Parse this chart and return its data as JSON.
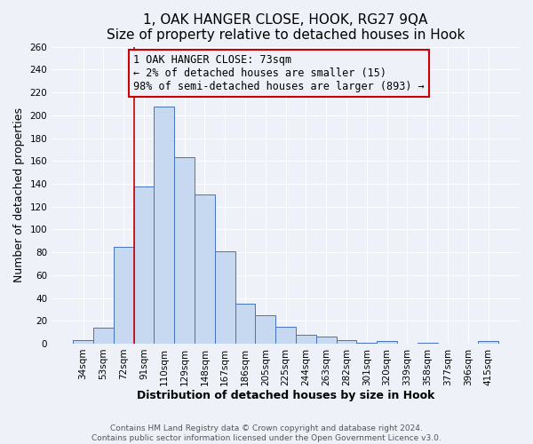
{
  "title": "1, OAK HANGER CLOSE, HOOK, RG27 9QA",
  "subtitle": "Size of property relative to detached houses in Hook",
  "xlabel": "Distribution of detached houses by size in Hook",
  "ylabel": "Number of detached properties",
  "bin_labels": [
    "34sqm",
    "53sqm",
    "72sqm",
    "91sqm",
    "110sqm",
    "129sqm",
    "148sqm",
    "167sqm",
    "186sqm",
    "205sqm",
    "225sqm",
    "244sqm",
    "263sqm",
    "282sqm",
    "301sqm",
    "320sqm",
    "339sqm",
    "358sqm",
    "377sqm",
    "396sqm",
    "415sqm"
  ],
  "bar_values": [
    3,
    14,
    85,
    138,
    208,
    163,
    131,
    81,
    35,
    25,
    15,
    8,
    6,
    3,
    1,
    2,
    0,
    1,
    0,
    0,
    2
  ],
  "bar_color": "#c6d9f0",
  "bar_edge_color": "#4472c4",
  "vline_color": "#cc0000",
  "vline_index": 2.5,
  "annotation_lines": [
    "1 OAK HANGER CLOSE: 73sqm",
    "← 2% of detached houses are smaller (15)",
    "98% of semi-detached houses are larger (893) →"
  ],
  "ylim": [
    0,
    260
  ],
  "yticks": [
    0,
    20,
    40,
    60,
    80,
    100,
    120,
    140,
    160,
    180,
    200,
    220,
    240,
    260
  ],
  "footer_line1": "Contains HM Land Registry data © Crown copyright and database right 2024.",
  "footer_line2": "Contains public sector information licensed under the Open Government Licence v3.0.",
  "bg_color": "#eef2f8",
  "grid_color": "#ffffff",
  "title_fontsize": 11,
  "subtitle_fontsize": 9.5,
  "axis_label_fontsize": 9,
  "tick_fontsize": 7.5,
  "annotation_fontsize": 8.5,
  "footer_fontsize": 6.5
}
